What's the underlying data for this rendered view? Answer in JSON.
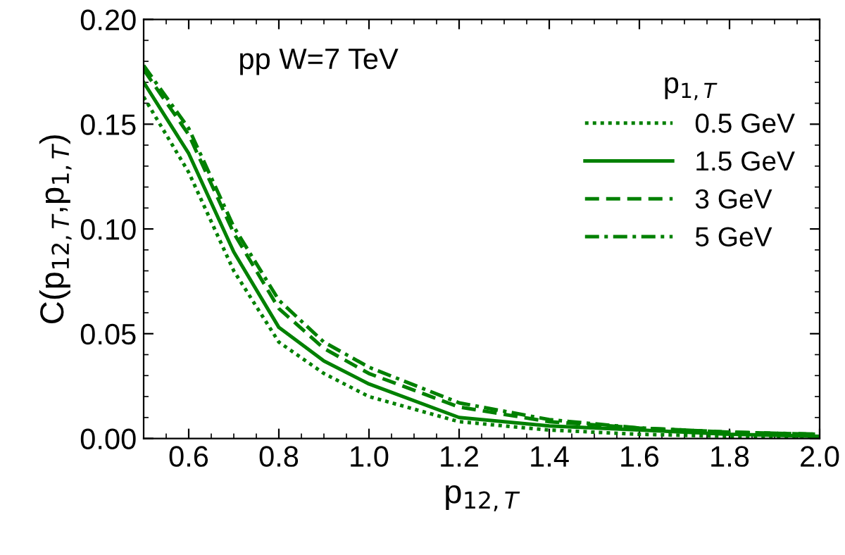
{
  "chart_data": {
    "type": "line",
    "xlabel": "p$_{12,T}$",
    "ylabel": "C(p$_{12,T}$,p$_{1,T}$)",
    "legend_title": "p$_{1,T}$",
    "annotations": [
      "pp W=7 TeV"
    ],
    "x": [
      0.5,
      0.6,
      0.7,
      0.8,
      0.9,
      1.0,
      1.2,
      1.4,
      1.6,
      1.8,
      2.0
    ],
    "series": [
      {
        "name": "0.5 GeV",
        "color": "#008000",
        "line_style": "dotted",
        "values": [
          0.163,
          0.127,
          0.08,
          0.046,
          0.031,
          0.02,
          0.008,
          0.004,
          0.002,
          0.001,
          0.001
        ]
      },
      {
        "name": "1.5 GeV",
        "color": "#008000",
        "line_style": "solid",
        "values": [
          0.17,
          0.136,
          0.089,
          0.053,
          0.037,
          0.026,
          0.01,
          0.006,
          0.004,
          0.002,
          0.001
        ]
      },
      {
        "name": "3 GeV",
        "color": "#008000",
        "line_style": "dashed",
        "values": [
          0.176,
          0.145,
          0.098,
          0.062,
          0.043,
          0.031,
          0.015,
          0.008,
          0.005,
          0.003,
          0.002
        ]
      },
      {
        "name": "5 GeV",
        "color": "#008000",
        "line_style": "dashdot",
        "values": [
          0.178,
          0.148,
          0.101,
          0.066,
          0.046,
          0.034,
          0.017,
          0.009,
          0.005,
          0.003,
          0.002
        ]
      }
    ],
    "xlim": [
      0.5,
      2.0
    ],
    "ylim": [
      0.0,
      0.2
    ],
    "xticks": [
      0.6,
      0.8,
      {
        "value": 1.0,
        "label": "1.0"
      },
      1.2,
      1.4,
      1.6,
      1.8,
      {
        "value": 2.0,
        "label": "2.0"
      }
    ],
    "yticks": [
      {
        "value": 0,
        "label": "0.00"
      },
      0.05,
      {
        "value": 0.1,
        "label": "0.10"
      },
      0.15,
      {
        "value": 0.2,
        "label": "0.20"
      }
    ],
    "legend": "right",
    "grid": false
  }
}
